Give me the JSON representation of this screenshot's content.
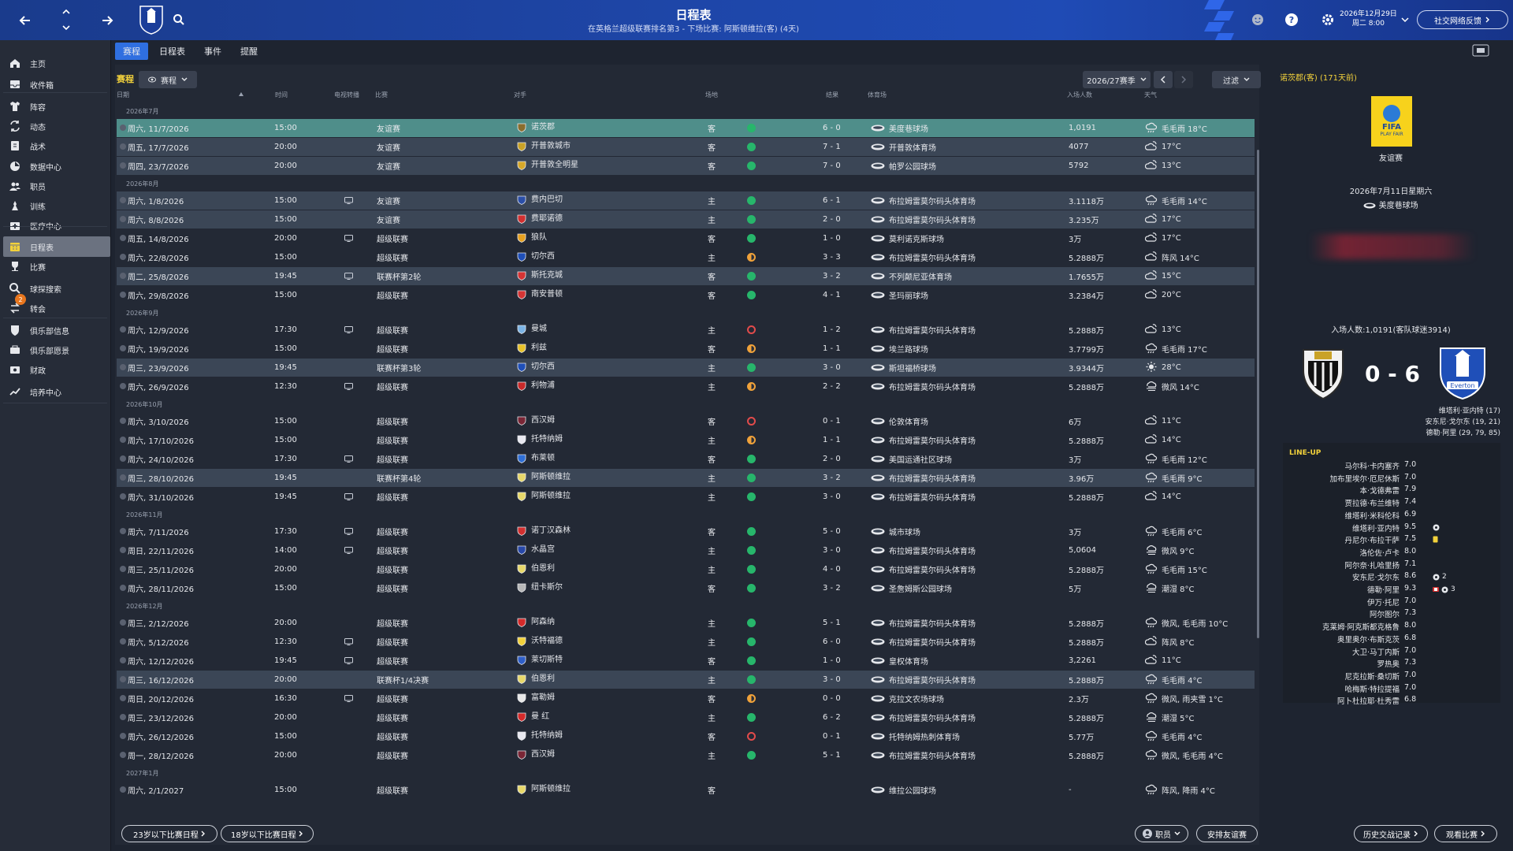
{
  "header": {
    "title": "日程表",
    "subtitle": "在英格兰超级联赛排名第3 - 下场比赛: 阿斯顿维拉(客) (4天)",
    "date_line1": "2026年12月29日",
    "date_line2": "周二 8:00",
    "feedback_label": "社交网络反馈"
  },
  "sidebar": {
    "items": [
      {
        "label": "主页",
        "icon": "home-icon"
      },
      {
        "label": "收件箱",
        "icon": "inbox-icon"
      },
      {
        "label": "阵容",
        "icon": "shirt-icon"
      },
      {
        "label": "动态",
        "icon": "dynamics-icon"
      },
      {
        "label": "战术",
        "icon": "tactics-icon"
      },
      {
        "label": "数据中心",
        "icon": "data-icon"
      },
      {
        "label": "职员",
        "icon": "staff-icon"
      },
      {
        "label": "训练",
        "icon": "training-icon"
      },
      {
        "label": "医疗中心",
        "icon": "medical-icon"
      },
      {
        "label": "日程表",
        "icon": "calendar-icon"
      },
      {
        "label": "比赛",
        "icon": "trophy-icon"
      },
      {
        "label": "球探搜索",
        "icon": "search-icon"
      },
      {
        "label": "转会",
        "icon": "transfer-icon",
        "badge": "2"
      },
      {
        "label": "俱乐部信息",
        "icon": "shield-icon"
      },
      {
        "label": "俱乐部愿景",
        "icon": "vision-icon"
      },
      {
        "label": "财政",
        "icon": "finance-icon"
      },
      {
        "label": "培养中心",
        "icon": "development-icon"
      }
    ]
  },
  "tabs": [
    "赛程",
    "日程表",
    "事件",
    "提醒"
  ],
  "main": {
    "section_label": "赛程",
    "view_dropdown": "赛程",
    "season": "2026/27赛季",
    "filter": "过滤",
    "columns": {
      "date": "日期",
      "time": "时间",
      "tv": "电视转播",
      "competition": "比赛",
      "opponent": "对手",
      "venue": "场地",
      "result": "结果",
      "stadium": "体育场",
      "attendance": "入场人数",
      "weather": "天气"
    }
  },
  "fixtures": [
    {
      "type": "month",
      "label": "2026年7月"
    },
    {
      "date": "周六, 11/7/2026",
      "time": "15:00",
      "tv": false,
      "comp": "友谊赛",
      "opp": "诺茨郡",
      "crest": "#8a6d2e",
      "venue": "客",
      "res": "w",
      "score": "6 - 0",
      "stadium": "美度巷球场",
      "att": "1,0191",
      "weather": "毛毛雨 18°C",
      "style": "sel"
    },
    {
      "date": "周五, 17/7/2026",
      "time": "20:00",
      "tv": false,
      "comp": "友谊赛",
      "opp": "开普敦城市",
      "crest": "#c9a227",
      "venue": "客",
      "res": "w",
      "score": "7 - 1",
      "stadium": "开普敦体育场",
      "att": "4077",
      "weather": "17°C",
      "style": "hl"
    },
    {
      "date": "周四, 23/7/2026",
      "time": "20:00",
      "tv": false,
      "comp": "友谊赛",
      "opp": "开普敦全明星",
      "crest": "#d8a92a",
      "venue": "客",
      "res": "w",
      "score": "7 - 0",
      "stadium": "帕罗公园球场",
      "att": "5792",
      "weather": "13°C",
      "style": "hl"
    },
    {
      "type": "month",
      "label": "2026年8月"
    },
    {
      "date": "周六, 1/8/2026",
      "time": "15:00",
      "tv": true,
      "comp": "友谊赛",
      "opp": "费内巴切",
      "crest": "#2b4fa8",
      "venue": "主",
      "res": "w",
      "score": "6 - 1",
      "stadium": "布拉姆雷莫尔码头体育场",
      "att": "3.1118万",
      "weather": "毛毛雨 14°C",
      "style": "hl"
    },
    {
      "date": "周六, 8/8/2026",
      "time": "15:00",
      "tv": false,
      "comp": "友谊赛",
      "opp": "费耶诺德",
      "crest": "#d23030",
      "venue": "主",
      "res": "w",
      "score": "2 - 0",
      "stadium": "布拉姆雷莫尔码头体育场",
      "att": "3.235万",
      "weather": "17°C",
      "style": "hl"
    },
    {
      "date": "周五, 14/8/2026",
      "time": "20:00",
      "tv": true,
      "comp": "超级联赛",
      "opp": "狼队",
      "crest": "#e6a020",
      "venue": "客",
      "res": "w",
      "score": "1 - 0",
      "stadium": "莫利诺克斯球场",
      "att": "3万",
      "weather": "17°C",
      "style": ""
    },
    {
      "date": "周六, 22/8/2026",
      "time": "15:00",
      "tv": false,
      "comp": "超级联赛",
      "opp": "切尔西",
      "crest": "#1f4fb8",
      "venue": "主",
      "res": "d",
      "score": "3 - 3",
      "stadium": "布拉姆雷莫尔码头体育场",
      "att": "5.2888万",
      "weather": "阵风 14°C",
      "style": ""
    },
    {
      "date": "周二, 25/8/2026",
      "time": "19:45",
      "tv": true,
      "comp": "联赛杯第2轮",
      "opp": "斯托克城",
      "crest": "#d63434",
      "venue": "客",
      "res": "w",
      "score": "3 - 2",
      "stadium": "不列颠尼亚体育场",
      "att": "1.7655万",
      "weather": "15°C",
      "style": "hl"
    },
    {
      "date": "周六, 29/8/2026",
      "time": "15:00",
      "tv": false,
      "comp": "超级联赛",
      "opp": "南安普顿",
      "crest": "#d43535",
      "venue": "客",
      "res": "w",
      "score": "4 - 1",
      "stadium": "圣玛丽球场",
      "att": "3.2384万",
      "weather": "20°C",
      "style": ""
    },
    {
      "type": "month",
      "label": "2026年9月"
    },
    {
      "date": "周六, 12/9/2026",
      "time": "17:30",
      "tv": true,
      "comp": "超级联赛",
      "opp": "曼城",
      "crest": "#7bb4e6",
      "venue": "主",
      "res": "l",
      "score": "1 - 2",
      "stadium": "布拉姆雷莫尔码头体育场",
      "att": "5.2888万",
      "weather": "13°C",
      "style": ""
    },
    {
      "date": "周六, 19/9/2026",
      "time": "15:00",
      "tv": false,
      "comp": "超级联赛",
      "opp": "利兹",
      "crest": "#e8c22a",
      "venue": "客",
      "res": "d",
      "score": "1 - 1",
      "stadium": "埃兰路球场",
      "att": "3.7799万",
      "weather": "毛毛雨 17°C",
      "style": ""
    },
    {
      "date": "周三, 23/9/2026",
      "time": "19:45",
      "tv": false,
      "comp": "联赛杯第3轮",
      "opp": "切尔西",
      "crest": "#1f4fb8",
      "venue": "主",
      "res": "w",
      "score": "3 - 0",
      "stadium": "斯坦福桥球场",
      "att": "3.9344万",
      "weather": "28°C",
      "style": "hl"
    },
    {
      "date": "周六, 26/9/2026",
      "time": "12:30",
      "tv": true,
      "comp": "超级联赛",
      "opp": "利物浦",
      "crest": "#c92a2a",
      "venue": "主",
      "res": "d",
      "score": "2 - 2",
      "stadium": "布拉姆雷莫尔码头体育场",
      "att": "5.2888万",
      "weather": "微风 14°C",
      "style": ""
    },
    {
      "type": "month",
      "label": "2026年10月"
    },
    {
      "date": "周六, 3/10/2026",
      "time": "15:00",
      "tv": false,
      "comp": "超级联赛",
      "opp": "西汉姆",
      "crest": "#7a2636",
      "venue": "客",
      "res": "l",
      "score": "0 - 1",
      "stadium": "伦敦体育场",
      "att": "6万",
      "weather": "11°C",
      "style": ""
    },
    {
      "date": "周六, 17/10/2026",
      "time": "15:00",
      "tv": false,
      "comp": "超级联赛",
      "opp": "托特纳姆",
      "crest": "#e8e8f0",
      "venue": "主",
      "res": "d",
      "score": "1 - 1",
      "stadium": "布拉姆雷莫尔码头体育场",
      "att": "5.2888万",
      "weather": "14°C",
      "style": ""
    },
    {
      "date": "周六, 24/10/2026",
      "time": "17:30",
      "tv": true,
      "comp": "超级联赛",
      "opp": "布莱顿",
      "crest": "#2f6fd6",
      "venue": "客",
      "res": "w",
      "score": "2 - 0",
      "stadium": "美国运通社区球场",
      "att": "3万",
      "weather": "毛毛雨 12°C",
      "style": ""
    },
    {
      "date": "周三, 28/10/2026",
      "time": "19:45",
      "tv": false,
      "comp": "联赛杯第4轮",
      "opp": "阿斯顿维拉",
      "crest": "#e8d86a",
      "venue": "主",
      "res": "w",
      "score": "3 - 2",
      "stadium": "布拉姆雷莫尔码头体育场",
      "att": "3.96万",
      "weather": "毛毛雨 9°C",
      "style": "hl"
    },
    {
      "date": "周六, 31/10/2026",
      "time": "19:45",
      "tv": true,
      "comp": "超级联赛",
      "opp": "阿斯顿维拉",
      "crest": "#e8d86a",
      "venue": "主",
      "res": "w",
      "score": "3 - 0",
      "stadium": "布拉姆雷莫尔码头体育场",
      "att": "5.2888万",
      "weather": "14°C",
      "style": ""
    },
    {
      "type": "month",
      "label": "2026年11月"
    },
    {
      "date": "周六, 7/11/2026",
      "time": "17:30",
      "tv": true,
      "comp": "超级联赛",
      "opp": "诺丁汉森林",
      "crest": "#d23030",
      "venue": "客",
      "res": "w",
      "score": "5 - 0",
      "stadium": "城市球场",
      "att": "3万",
      "weather": "毛毛雨 6°C",
      "style": ""
    },
    {
      "date": "周日, 22/11/2026",
      "time": "14:00",
      "tv": true,
      "comp": "超级联赛",
      "opp": "水晶宫",
      "crest": "#2848a8",
      "venue": "主",
      "res": "w",
      "score": "3 - 0",
      "stadium": "布拉姆雷莫尔码头体育场",
      "att": "5,0604",
      "weather": "微风 9°C",
      "style": ""
    },
    {
      "date": "周三, 25/11/2026",
      "time": "20:00",
      "tv": false,
      "comp": "超级联赛",
      "opp": "伯恩利",
      "crest": "#e8d86a",
      "venue": "主",
      "res": "w",
      "score": "4 - 0",
      "stadium": "布拉姆雷莫尔码头体育场",
      "att": "5.2888万",
      "weather": "毛毛雨 15°C",
      "style": ""
    },
    {
      "date": "周六, 28/11/2026",
      "time": "15:00",
      "tv": false,
      "comp": "超级联赛",
      "opp": "纽卡斯尔",
      "crest": "#b8b8b8",
      "venue": "客",
      "res": "w",
      "score": "3 - 2",
      "stadium": "圣詹姆斯公园球场",
      "att": "5万",
      "weather": "潮湿 8°C",
      "style": ""
    },
    {
      "type": "month",
      "label": "2026年12月"
    },
    {
      "date": "周三, 2/12/2026",
      "time": "20:00",
      "tv": false,
      "comp": "超级联赛",
      "opp": "阿森纳",
      "crest": "#d42a2a",
      "venue": "主",
      "res": "w",
      "score": "5 - 1",
      "stadium": "布拉姆雷莫尔码头体育场",
      "att": "5.2888万",
      "weather": "微风, 毛毛雨 10°C",
      "style": ""
    },
    {
      "date": "周六, 5/12/2026",
      "time": "12:30",
      "tv": true,
      "comp": "超级联赛",
      "opp": "沃特福德",
      "crest": "#f2d13b",
      "venue": "主",
      "res": "w",
      "score": "6 - 0",
      "stadium": "布拉姆雷莫尔码头体育场",
      "att": "5.2888万",
      "weather": "阵风 8°C",
      "style": ""
    },
    {
      "date": "周六, 12/12/2026",
      "time": "19:45",
      "tv": true,
      "comp": "超级联赛",
      "opp": "莱切斯特",
      "crest": "#2f5fc8",
      "venue": "客",
      "res": "w",
      "score": "1 - 0",
      "stadium": "皇权体育场",
      "att": "3,2261",
      "weather": "11°C",
      "style": ""
    },
    {
      "date": "周三, 16/12/2026",
      "time": "20:00",
      "tv": false,
      "comp": "联赛杯1/4决赛",
      "opp": "伯恩利",
      "crest": "#e8d86a",
      "venue": "主",
      "res": "w",
      "score": "3 - 0",
      "stadium": "布拉姆雷莫尔码头体育场",
      "att": "5.2888万",
      "weather": "毛毛雨 4°C",
      "style": "hl"
    },
    {
      "date": "周日, 20/12/2026",
      "time": "16:30",
      "tv": true,
      "comp": "超级联赛",
      "opp": "富勒姆",
      "crest": "#e8e8e8",
      "venue": "客",
      "res": "d",
      "score": "0 - 0",
      "stadium": "克拉文农场球场",
      "att": "2.3万",
      "weather": "微风, 雨夹雪 1°C",
      "style": ""
    },
    {
      "date": "周三, 23/12/2026",
      "time": "20:00",
      "tv": false,
      "comp": "超级联赛",
      "opp": "曼 红",
      "crest": "#d42a2a",
      "venue": "主",
      "res": "w",
      "score": "6 - 2",
      "stadium": "布拉姆雷莫尔码头体育场",
      "att": "5.2888万",
      "weather": "潮湿 5°C",
      "style": ""
    },
    {
      "date": "周六, 26/12/2026",
      "time": "15:00",
      "tv": false,
      "comp": "超级联赛",
      "opp": "托特纳姆",
      "crest": "#e8e8f0",
      "venue": "客",
      "res": "l",
      "score": "0 - 1",
      "stadium": "托特纳姆热刺体育场",
      "att": "5.77万",
      "weather": "毛毛雨 4°C",
      "style": ""
    },
    {
      "date": "周一, 28/12/2026",
      "time": "20:00",
      "tv": false,
      "comp": "超级联赛",
      "opp": "西汉姆",
      "crest": "#7a2636",
      "venue": "主",
      "res": "w",
      "score": "5 - 1",
      "stadium": "布拉姆雷莫尔码头体育场",
      "att": "5.2888万",
      "weather": "微风, 毛毛雨 4°C",
      "style": ""
    },
    {
      "type": "month",
      "label": "2027年1月"
    },
    {
      "date": "周六, 2/1/2027",
      "time": "15:00",
      "tv": false,
      "comp": "超级联赛",
      "opp": "阿斯顿维拉",
      "crest": "#e8d86a",
      "venue": "客",
      "res": "",
      "score": "",
      "stadium": "维拉公园球场",
      "att": "-",
      "weather": "阵风, 降雨 4°C",
      "style": ""
    }
  ],
  "footer": {
    "u23_label": "23岁以下比赛日程",
    "u18_label": "18岁以下比赛日程",
    "staff_label": "职员",
    "arrange_label": "安排友谊赛"
  },
  "match_panel": {
    "title": "诺茨郡(客) (171天前)",
    "competition": "友谊赛",
    "fifa_text": "FIFA",
    "fifa_sub": "PLAY FAIR",
    "date": "2026年7月11日星期六",
    "stadium": "美度巷球场",
    "attendance": "入场人数:1,0191(客队球迷3914)",
    "score": "0 - 6",
    "away_crest_text": "Everton",
    "scorers": [
      "维塔利·亚内特 (17)",
      "安东尼·戈尔东 (19, 21)",
      "德勒·阿里 (29, 79, 85)"
    ],
    "lineup_title": "LINE-UP",
    "lineup": [
      {
        "name": "马尔科·卡内塞齐",
        "rating": "7.0",
        "ev": ""
      },
      {
        "name": "加布里埃尔·厄尼休斯",
        "rating": "7.0",
        "ev": ""
      },
      {
        "name": "本·戈德弗雷",
        "rating": "7.9",
        "ev": ""
      },
      {
        "name": "贾拉德·布兰维特",
        "rating": "7.4",
        "ev": ""
      },
      {
        "name": "维塔利·米科伦科",
        "rating": "6.9",
        "ev": ""
      },
      {
        "name": "维塔利·亚内特",
        "rating": "9.5",
        "ev": "ball"
      },
      {
        "name": "丹尼尔·布拉干萨",
        "rating": "7.5",
        "ev": "yellow"
      },
      {
        "name": "洛伦佐·卢卡",
        "rating": "8.0",
        "ev": ""
      },
      {
        "name": "阿尔奈·扎哈里扬",
        "rating": "7.1",
        "ev": ""
      },
      {
        "name": "安东尼·戈尔东",
        "rating": "8.6",
        "ev": "ball2"
      },
      {
        "name": "德勒·阿里",
        "rating": "9.3",
        "ev": "ball3"
      },
      {
        "name": "伊万·托尼",
        "rating": "7.0",
        "ev": ""
      },
      {
        "name": "阿尔图尔",
        "rating": "7.3",
        "ev": ""
      },
      {
        "name": "克莱姆·阿克斯都克格鲁",
        "rating": "8.0",
        "ev": ""
      },
      {
        "name": "奥里奥尔·布斯克茨",
        "rating": "6.8",
        "ev": ""
      },
      {
        "name": "大卫·马丁内斯",
        "rating": "7.0",
        "ev": ""
      },
      {
        "name": "罗热奥",
        "rating": "7.3",
        "ev": ""
      },
      {
        "name": "尼克拉斯·桑切斯",
        "rating": "7.0",
        "ev": ""
      },
      {
        "name": "哈梅斯·特拉提福",
        "rating": "7.0",
        "ev": ""
      },
      {
        "name": "阿卜杜拉耶·杜秀雷",
        "rating": "6.8",
        "ev": ""
      }
    ],
    "goal_count_2": "2",
    "goal_count_3": "3",
    "history_label": "历史交战记录",
    "watch_label": "观看比赛"
  }
}
